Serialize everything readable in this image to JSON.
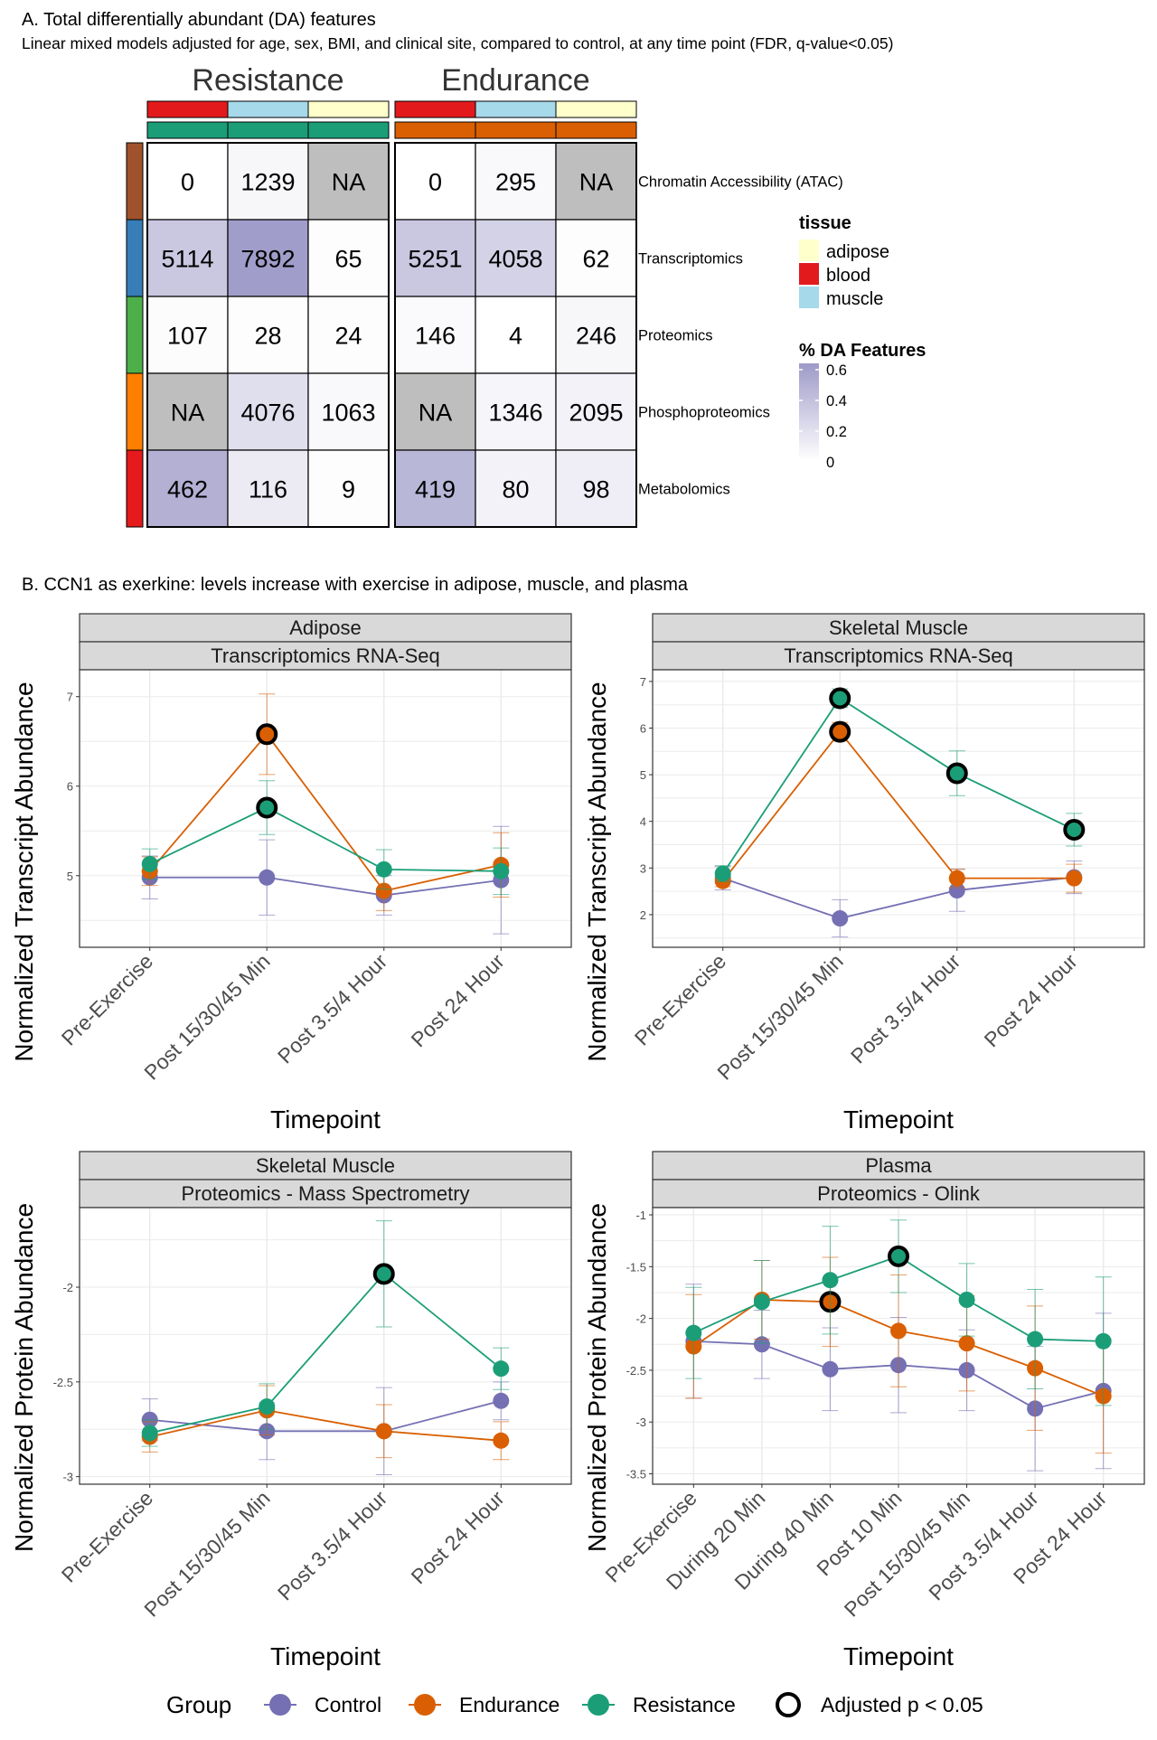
{
  "section_a": {
    "title": "A. Total differentially abundant (DA) features",
    "subtitle": "Linear mixed models adjusted for age, sex, BMI, and clinical site, compared to control, at any time point (FDR, q-value<0.05)"
  },
  "section_b": {
    "title": "B. CCN1 as exerkine: levels increase with exercise in adipose, muscle, and plasma"
  },
  "colors": {
    "control": "#7570b3",
    "endurance": "#d95f02",
    "resistance": "#1b9e77",
    "adipose": "#ffffcc",
    "blood": "#e31a1c",
    "muscle": "#a6d9ea",
    "na_cell": "#bebebe",
    "heat_high": "#9e9ac8",
    "strip_bg": "#d9d9d9",
    "grid": "#ebebeb",
    "atac": "#a0522d",
    "transcriptomics": "#377eb8",
    "proteomics": "#4daf4a",
    "phosphoproteomics": "#ff7f00",
    "metabolomics": "#e41a1c"
  },
  "chart_data": [
    {
      "type": "heatmap",
      "groups": [
        "Resistance",
        "Endurance"
      ],
      "tissues": [
        "blood",
        "muscle",
        "adipose"
      ],
      "rows": [
        "Chromatin Accessibility (ATAC)",
        "Transcriptomics",
        "Proteomics",
        "Phosphoproteomics",
        "Metabolomics"
      ],
      "row_keys": [
        "atac",
        "transcriptomics",
        "proteomics",
        "phosphoproteomics",
        "metabolomics"
      ],
      "values": [
        [
          "0",
          "1239",
          "NA",
          "0",
          "295",
          "NA"
        ],
        [
          "5114",
          "7892",
          "65",
          "5251",
          "4058",
          "62"
        ],
        [
          "107",
          "28",
          "24",
          "146",
          "4",
          "246"
        ],
        [
          "NA",
          "4076",
          "1063",
          "NA",
          "1346",
          "2095"
        ],
        [
          "462",
          "116",
          "9",
          "419",
          "80",
          "98"
        ]
      ],
      "pct": [
        [
          0.0,
          0.05,
          null,
          0.0,
          0.04,
          null
        ],
        [
          0.33,
          0.58,
          0.01,
          0.33,
          0.27,
          0.01
        ],
        [
          0.02,
          0.01,
          0.01,
          0.03,
          0.0,
          0.05
        ],
        [
          null,
          0.19,
          0.04,
          null,
          0.06,
          0.08
        ],
        [
          0.47,
          0.12,
          0.01,
          0.43,
          0.08,
          0.1
        ]
      ],
      "legend_tissue_title": "tissue",
      "legend_tissue_labels": [
        "adipose",
        "blood",
        "muscle"
      ],
      "legend_pct_title": "% DA Features",
      "legend_pct_ticks": [
        "0.6",
        "0.4",
        "0.2",
        "0"
      ]
    },
    {
      "type": "line",
      "strip1": "Adipose",
      "strip2": "Transcriptomics RNA-Seq",
      "ylabel": "Normalized Transcript Abundance",
      "xlabel": "Timepoint",
      "categories": [
        "Pre-Exercise",
        "Post 15/30/45 Min",
        "Post 3.5/4 Hour",
        "Post 24 Hour"
      ],
      "ylim": [
        4.2,
        7.3
      ],
      "yticks": [
        5,
        6,
        7
      ],
      "series": [
        {
          "name": "Control",
          "values": [
            4.98,
            4.98,
            4.78,
            4.95
          ],
          "err": [
            0.24,
            0.42,
            0.22,
            0.6
          ],
          "sig": [
            false,
            false,
            false,
            false
          ]
        },
        {
          "name": "Endurance",
          "values": [
            5.05,
            6.58,
            4.83,
            5.12
          ],
          "err": [
            0.16,
            0.45,
            0.22,
            0.36
          ],
          "sig": [
            false,
            true,
            false,
            false
          ]
        },
        {
          "name": "Resistance",
          "values": [
            5.13,
            5.76,
            5.07,
            5.05
          ],
          "err": [
            0.17,
            0.3,
            0.22,
            0.26
          ],
          "sig": [
            false,
            true,
            false,
            false
          ]
        }
      ]
    },
    {
      "type": "line",
      "strip1": "Skeletal Muscle",
      "strip2": "Transcriptomics RNA-Seq",
      "ylabel": "Normalized Transcript Abundance",
      "xlabel": "Timepoint",
      "categories": [
        "Pre-Exercise",
        "Post 15/30/45 Min",
        "Post 3.5/4 Hour",
        "Post 24 Hour"
      ],
      "ylim": [
        1.3,
        7.25
      ],
      "yticks": [
        2,
        3,
        4,
        5,
        6,
        7
      ],
      "series": [
        {
          "name": "Control",
          "values": [
            2.78,
            1.92,
            2.52,
            2.8
          ],
          "err": [
            0.25,
            0.4,
            0.45,
            0.35
          ],
          "sig": [
            false,
            false,
            false,
            false
          ]
        },
        {
          "name": "Endurance",
          "values": [
            2.72,
            5.92,
            2.78,
            2.78
          ],
          "err": [
            0.12,
            0.2,
            0.2,
            0.3
          ],
          "sig": [
            false,
            true,
            false,
            false
          ]
        },
        {
          "name": "Resistance",
          "values": [
            2.88,
            6.64,
            5.03,
            3.82
          ],
          "err": [
            0.17,
            0.2,
            0.48,
            0.35
          ],
          "sig": [
            false,
            true,
            true,
            true
          ]
        }
      ]
    },
    {
      "type": "line",
      "strip1": "Skeletal Muscle",
      "strip2": "Proteomics - Mass Spectrometry",
      "ylabel": "Normalized Protein Abundance",
      "xlabel": "Timepoint",
      "categories": [
        "Pre-Exercise",
        "Post 15/30/45 Min",
        "Post 3.5/4 Hour",
        "Post 24 Hour"
      ],
      "ylim": [
        -3.04,
        -1.58
      ],
      "yticks": [
        -3.0,
        -2.5,
        -2.0
      ],
      "series": [
        {
          "name": "Control",
          "values": [
            -2.7,
            -2.76,
            -2.76,
            -2.6
          ],
          "err": [
            0.11,
            0.15,
            0.23,
            0.1
          ],
          "sig": [
            false,
            false,
            false,
            false
          ]
        },
        {
          "name": "Endurance",
          "values": [
            -2.79,
            -2.65,
            -2.76,
            -2.81
          ],
          "err": [
            0.08,
            0.13,
            0.14,
            0.1
          ],
          "sig": [
            false,
            false,
            false,
            false
          ]
        },
        {
          "name": "Resistance",
          "values": [
            -2.77,
            -2.63,
            -1.93,
            -2.43
          ],
          "err": [
            0.07,
            0.12,
            0.28,
            0.11
          ],
          "sig": [
            false,
            false,
            true,
            false
          ]
        }
      ]
    },
    {
      "type": "line",
      "strip1": "Plasma",
      "strip2": "Proteomics - Olink",
      "ylabel": "Normalized Protein Abundance",
      "xlabel": "Timepoint",
      "categories": [
        "Pre-Exercise",
        "During 20 Min",
        "During 40 Min",
        "Post 10 Min",
        "Post 15/30/45 Min",
        "Post 3.5/4 Hour",
        "Post 24 Hour"
      ],
      "ylim": [
        -3.6,
        -0.93
      ],
      "yticks": [
        -1.0,
        -1.5,
        -2.0,
        -2.5,
        -3.0,
        -3.5
      ],
      "series": [
        {
          "name": "Control",
          "values": [
            -2.22,
            -2.25,
            -2.49,
            -2.45,
            -2.5,
            -2.87,
            -2.7
          ],
          "err": [
            0.55,
            0.33,
            0.4,
            0.46,
            0.39,
            0.6,
            0.75
          ],
          "sig": [
            false,
            false,
            false,
            false,
            false,
            false,
            false
          ]
        },
        {
          "name": "Endurance",
          "values": [
            -2.27,
            -1.82,
            -1.84,
            -2.12,
            -2.24,
            -2.48,
            -2.75
          ],
          "err": [
            0.5,
            0.38,
            0.43,
            0.54,
            0.46,
            0.6,
            0.55
          ],
          "sig": [
            false,
            false,
            true,
            false,
            false,
            false,
            false
          ]
        },
        {
          "name": "Resistance",
          "values": [
            -2.14,
            -1.84,
            -1.63,
            -1.4,
            -1.82,
            -2.2,
            -2.22
          ],
          "err": [
            0.44,
            0.4,
            0.52,
            0.35,
            0.35,
            0.48,
            0.62
          ],
          "sig": [
            false,
            false,
            false,
            true,
            false,
            false,
            false
          ]
        }
      ]
    }
  ],
  "legend": {
    "title": "Group",
    "items": [
      "Control",
      "Endurance",
      "Resistance"
    ],
    "sig_label": "Adjusted p < 0.05"
  }
}
